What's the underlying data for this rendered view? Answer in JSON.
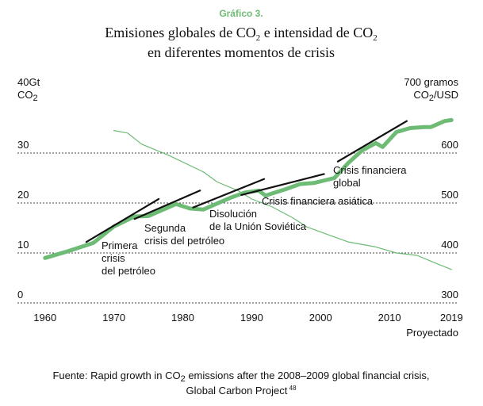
{
  "kicker": "Gráfico 3.",
  "title": {
    "line1_a": "Emisiones globales de CO",
    "line1_sub1": "2",
    "line1_b": " e intensidad de CO",
    "line1_sub2": "2",
    "line2": "en diferentes momentos de crisis"
  },
  "left_axis": {
    "unit_line1": "40Gt",
    "unit_line2_a": "CO",
    "unit_line2_sub": "2"
  },
  "right_axis": {
    "unit_line1": "700 gramos",
    "unit_line2_a": "CO",
    "unit_line2_sub": "2",
    "unit_line2_b": "/USD"
  },
  "x_extra_label": "Proyectado",
  "annotations": {
    "primera": [
      "Primera",
      "crisis",
      "del petróleo"
    ],
    "segunda": [
      "Segunda",
      "crisis del petróleo"
    ],
    "disolucion": [
      "Disolución",
      "de la Unión Soviética"
    ],
    "asiatica": [
      "Crisis financiera asiática"
    ],
    "global": [
      "Crisis financiera",
      "global"
    ]
  },
  "source": {
    "line1_a": "Fuente: Rapid growth in CO",
    "line1_sub": "2",
    "line1_b": " emissions after the 2008–2009 global financial crisis,",
    "line2": "Global Carbon Project",
    "line2_sup": " 48"
  },
  "chart_data": {
    "type": "line",
    "xlim": [
      1956,
      2020
    ],
    "x_ticks": [
      "1960",
      "1970",
      "1980",
      "1990",
      "2000",
      "2010",
      "2019"
    ],
    "x_tick_values": [
      1960,
      1970,
      1980,
      1990,
      2000,
      2010,
      2019
    ],
    "y_left": {
      "ylim": [
        0,
        40
      ],
      "ticks": [
        0,
        10,
        20,
        30
      ],
      "tick_labels": [
        "0",
        "10",
        "20",
        "30"
      ]
    },
    "y_right": {
      "ylim": [
        300,
        700
      ],
      "ticks": [
        300,
        400,
        500,
        600
      ],
      "tick_labels": [
        "300",
        "400",
        "500",
        "600"
      ]
    },
    "grid": true,
    "colors": {
      "emissions": "#6dbb74",
      "intensity": "#6dbb74",
      "trend": "#111111",
      "kicker": "#6dbb74"
    },
    "series": [
      {
        "axis": "left",
        "style": "thick",
        "points": [
          [
            1960,
            9
          ],
          [
            1963,
            10.2
          ],
          [
            1967,
            12
          ],
          [
            1970,
            15.3
          ],
          [
            1973,
            17.3
          ],
          [
            1975,
            17.4
          ],
          [
            1979,
            19.8
          ],
          [
            1981,
            18.9
          ],
          [
            1983,
            18.7
          ],
          [
            1985,
            19.9
          ],
          [
            1987,
            21.1
          ],
          [
            1989,
            22.1
          ],
          [
            1991,
            22.5
          ],
          [
            1992,
            21.5
          ],
          [
            1995,
            22.8
          ],
          [
            1997,
            23.8
          ],
          [
            1999,
            24.0
          ],
          [
            2002,
            25.0
          ],
          [
            2004,
            28.0
          ],
          [
            2006,
            30.5
          ],
          [
            2008,
            32.0
          ],
          [
            2009,
            31.2
          ],
          [
            2011,
            34.2
          ],
          [
            2013,
            35.0
          ],
          [
            2015,
            35.2
          ],
          [
            2016,
            35.2
          ],
          [
            2018,
            36.4
          ],
          [
            2019,
            36.6
          ]
        ]
      },
      {
        "axis": "right",
        "style": "thin",
        "points": [
          [
            1970,
            645
          ],
          [
            1972,
            640
          ],
          [
            1974,
            618
          ],
          [
            1978,
            595
          ],
          [
            1983,
            562
          ],
          [
            1985,
            542
          ],
          [
            1988,
            525
          ],
          [
            1990,
            508
          ],
          [
            1993,
            492
          ],
          [
            1996,
            470
          ],
          [
            1998,
            452
          ],
          [
            2001,
            437
          ],
          [
            2004,
            422
          ],
          [
            2008,
            412
          ],
          [
            2011,
            400
          ],
          [
            2014,
            395
          ],
          [
            2017,
            378
          ],
          [
            2019,
            367
          ]
        ]
      }
    ],
    "trend_lines": [
      {
        "from": [
          1966,
          12.2
        ],
        "to": [
          1976.5,
          20.8
        ]
      },
      {
        "from": [
          1973,
          16.8
        ],
        "to": [
          1982.5,
          22.5
        ]
      },
      {
        "from": [
          1981.5,
          19.1
        ],
        "to": [
          1991.8,
          24.8
        ]
      },
      {
        "from": [
          1988.5,
          21.6
        ],
        "to": [
          2000.5,
          25.8
        ]
      },
      {
        "from": [
          2002.5,
          28.3
        ],
        "to": [
          2012.5,
          36.4
        ]
      }
    ]
  }
}
